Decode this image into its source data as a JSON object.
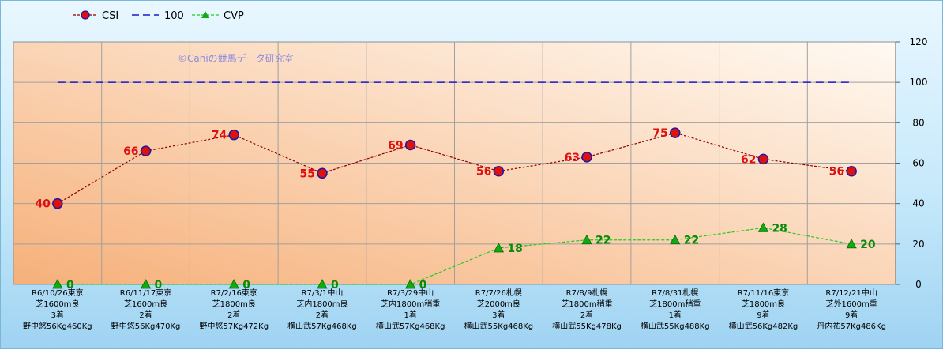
{
  "chart_data": {
    "type": "line",
    "watermark": "©Caniの競馬データ研究室",
    "categories": [
      [
        "R6/10/26東京",
        "芝1600m良",
        "3着",
        "野中悠56Kg460Kg"
      ],
      [
        "R6/11/17東京",
        "芝1600m良",
        "2着",
        "野中悠56Kg470Kg"
      ],
      [
        "R7/2/16東京",
        "芝1800m良",
        "2着",
        "野中悠57Kg472Kg"
      ],
      [
        "R7/3/1中山",
        "芝内1800m良",
        "2着",
        "横山武57Kg468Kg"
      ],
      [
        "R7/3/29中山",
        "芝内1800m稍重",
        "1着",
        "横山武57Kg468Kg"
      ],
      [
        "R7/7/26札幌",
        "芝2000m良",
        "3着",
        "横山武55Kg468Kg"
      ],
      [
        "R7/8/9札幌",
        "芝1800m稍重",
        "2着",
        "横山武55Kg478Kg"
      ],
      [
        "R7/8/31札幌",
        "芝1800m稍重",
        "1着",
        "横山武55Kg488Kg"
      ],
      [
        "R7/11/16東京",
        "芝1800m良",
        "9着",
        "横山武56Kg482Kg"
      ],
      [
        "R7/12/21中山",
        "芝外1600m重",
        "9着",
        "丹内祐57Kg486Kg"
      ]
    ],
    "series": [
      {
        "name": "CSI",
        "values": [
          40,
          66,
          74,
          55,
          69,
          56,
          63,
          75,
          62,
          56
        ],
        "color": "#8b0000",
        "marker": "circle",
        "marker_fill": "#e01010",
        "marker_stroke": "#1a1aa0",
        "style": "dotted"
      },
      {
        "name": "100",
        "values": [
          100,
          100,
          100,
          100,
          100,
          100,
          100,
          100,
          100,
          100
        ],
        "color": "#1a1acc",
        "style": "dashed"
      },
      {
        "name": "CVP",
        "values": [
          0,
          0,
          0,
          0,
          0,
          18,
          22,
          22,
          28,
          20
        ],
        "color": "#22cc22",
        "marker": "triangle",
        "marker_fill": "#11aa11",
        "style": "dashed"
      }
    ],
    "yaxis": {
      "side": "right",
      "min": 0,
      "max": 120,
      "ticks": [
        "0",
        "20",
        "40",
        "60",
        "80",
        "100",
        "120"
      ]
    },
    "legend": "top-left",
    "grid": true,
    "colors": {
      "plot_top": "#fffaf2",
      "plot_bottom": "#f7b67f",
      "grid": "#a0a0a0"
    }
  }
}
